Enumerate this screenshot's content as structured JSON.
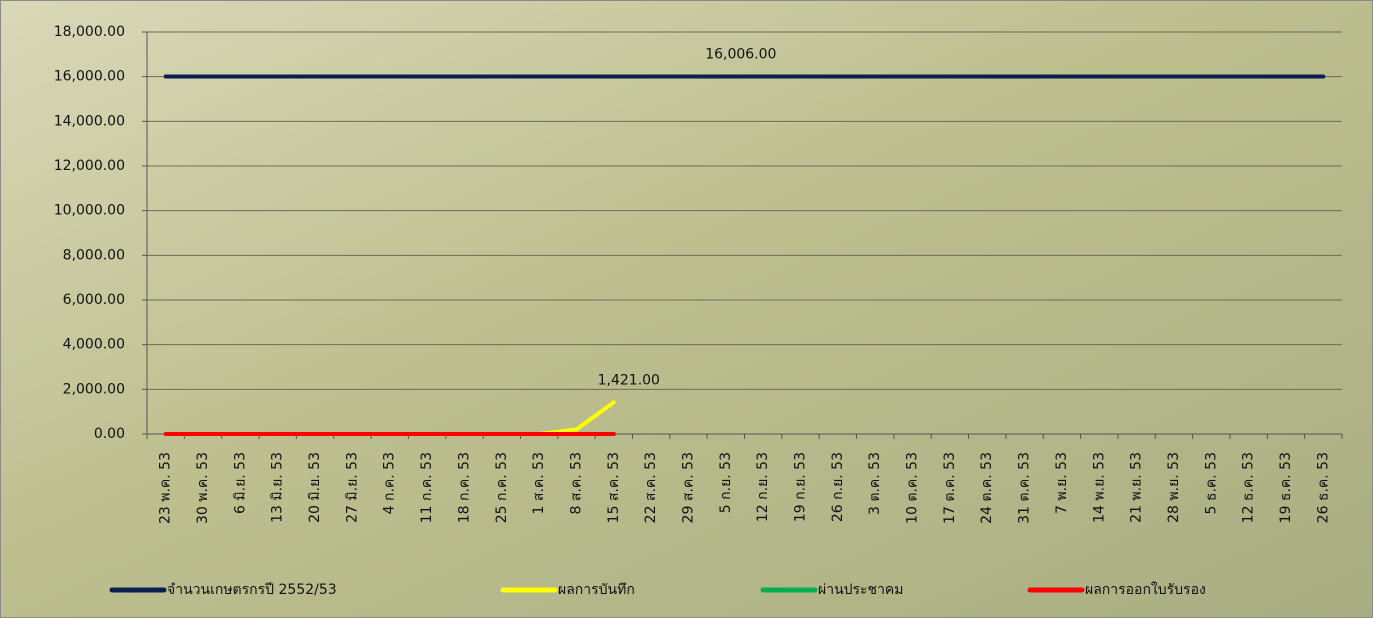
{
  "chart_data": {
    "type": "line",
    "categories": [
      "23 พ.ค. 53",
      "30 พ.ค. 53",
      "6 มิ.ย. 53",
      "13 มิ.ย. 53",
      "20 มิ.ย. 53",
      "27 มิ.ย. 53",
      "4 ก.ค. 53",
      "11 ก.ค. 53",
      "18 ก.ค. 53",
      "25 ก.ค. 53",
      "1 ส.ค. 53",
      "8 ส.ค. 53",
      "15 ส.ค. 53",
      "22 ส.ค. 53",
      "29 ส.ค. 53",
      "5 ก.ย. 53",
      "12 ก.ย. 53",
      "19 ก.ย. 53",
      "26 ก.ย. 53",
      "3 ต.ค. 53",
      "10 ต.ค. 53",
      "17 ต.ค. 53",
      "24 ต.ค. 53",
      "31 ต.ค. 53",
      "7 พ.ย. 53",
      "14 พ.ย. 53",
      "21 พ.ย. 53",
      "28 พ.ย. 53",
      "5 ธ.ค. 53",
      "12 ธ.ค. 53",
      "19 ธ.ค. 53",
      "26 ธ.ค. 53"
    ],
    "series": [
      {
        "name": "จำนวนเกษตรกรปี  2552/53",
        "color": "#0b1f4f",
        "values": [
          16006,
          16006,
          16006,
          16006,
          16006,
          16006,
          16006,
          16006,
          16006,
          16006,
          16006,
          16006,
          16006,
          16006,
          16006,
          16006,
          16006,
          16006,
          16006,
          16006,
          16006,
          16006,
          16006,
          16006,
          16006,
          16006,
          16006,
          16006,
          16006,
          16006,
          16006,
          16006
        ],
        "value_labels": [
          null,
          null,
          null,
          null,
          null,
          null,
          null,
          null,
          null,
          null,
          null,
          null,
          null,
          null,
          null,
          "16,006.00",
          null,
          null,
          null,
          null,
          null,
          null,
          null,
          null,
          null,
          null,
          null,
          null,
          null,
          null,
          null,
          null
        ]
      },
      {
        "name": "ผลการบันทึก",
        "color": "#ffff00",
        "values": [
          0,
          0,
          0,
          0,
          0,
          0,
          0,
          0,
          0,
          0,
          0,
          200,
          1421,
          null,
          null,
          null,
          null,
          null,
          null,
          null,
          null,
          null,
          null,
          null,
          null,
          null,
          null,
          null,
          null,
          null,
          null,
          null
        ],
        "value_labels": [
          null,
          null,
          null,
          null,
          null,
          null,
          null,
          null,
          null,
          null,
          null,
          null,
          "1,421.00",
          null,
          null,
          null,
          null,
          null,
          null,
          null,
          null,
          null,
          null,
          null,
          null,
          null,
          null,
          null,
          null,
          null,
          null,
          null
        ]
      },
      {
        "name": "ผ่านประชาคม",
        "color": "#00b050",
        "values": [
          0,
          0,
          0,
          0,
          0,
          0,
          0,
          0,
          0,
          0,
          0,
          0,
          0,
          null,
          null,
          null,
          null,
          null,
          null,
          null,
          null,
          null,
          null,
          null,
          null,
          null,
          null,
          null,
          null,
          null,
          null,
          null
        ]
      },
      {
        "name": "ผลการออกใบรับรอง",
        "color": "#ff0000",
        "values": [
          0,
          0,
          0,
          0,
          0,
          0,
          0,
          0,
          0,
          0,
          0,
          0,
          0,
          null,
          null,
          null,
          null,
          null,
          null,
          null,
          null,
          null,
          null,
          null,
          null,
          null,
          null,
          null,
          null,
          null,
          null,
          null
        ]
      }
    ],
    "ylim": [
      0,
      18000
    ],
    "yticks": [
      {
        "value": 0,
        "label": "0.00"
      },
      {
        "value": 2000,
        "label": "2,000.00"
      },
      {
        "value": 4000,
        "label": "4,000.00"
      },
      {
        "value": 6000,
        "label": "6,000.00"
      },
      {
        "value": 8000,
        "label": "8,000.00"
      },
      {
        "value": 10000,
        "label": "10,000.00"
      },
      {
        "value": 12000,
        "label": "12,000.00"
      },
      {
        "value": 14000,
        "label": "14,000.00"
      },
      {
        "value": 16000,
        "label": "16,000.00"
      },
      {
        "value": 18000,
        "label": "18,000.00"
      }
    ],
    "grid": true,
    "legend": "bottom"
  }
}
